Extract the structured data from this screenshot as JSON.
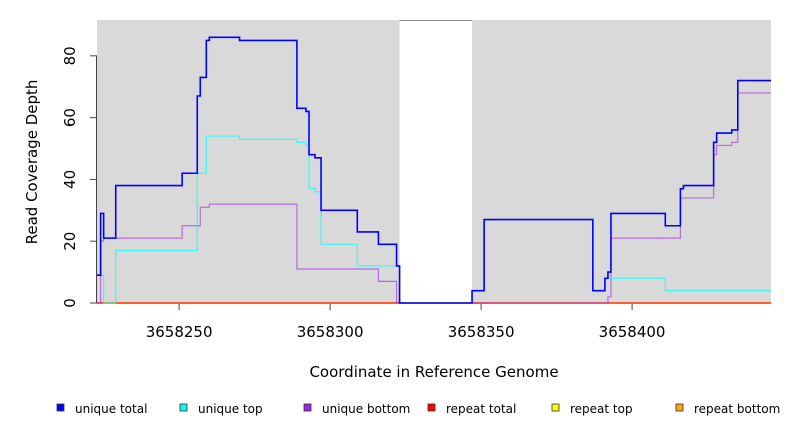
{
  "chart_data": {
    "type": "line",
    "step": true,
    "title": "",
    "xlabel": "Coordinate in Reference Genome",
    "ylabel": "Read Coverage Depth",
    "xlim": [
      3658222.8,
      3658446
    ],
    "ylim": [
      0,
      91.6
    ],
    "xticks": [
      3658250,
      3658300,
      3658350,
      3658400
    ],
    "xtick_labels": [
      "3658250",
      "3658300",
      "3658350",
      "3658400"
    ],
    "yticks": [
      0,
      20,
      40,
      60,
      80
    ],
    "ytick_labels": [
      "0",
      "20",
      "40",
      "60",
      "80"
    ],
    "background_color": "#d9d9d9",
    "no_data_region": [
      3658323,
      3658347
    ],
    "legend_position": "bottom",
    "series": [
      {
        "name": "unique total",
        "color": "#0000ff",
        "points": [
          [
            3658222.8,
            9
          ],
          [
            3658224,
            29
          ],
          [
            3658225,
            21
          ],
          [
            3658229,
            38
          ],
          [
            3658251,
            42
          ],
          [
            3658256,
            67
          ],
          [
            3658257,
            73
          ],
          [
            3658259,
            85
          ],
          [
            3658260,
            86
          ],
          [
            3658270,
            85
          ],
          [
            3658289,
            63
          ],
          [
            3658292,
            62
          ],
          [
            3658293,
            48
          ],
          [
            3658295,
            47
          ],
          [
            3658297,
            30
          ],
          [
            3658309,
            23
          ],
          [
            3658316,
            19
          ],
          [
            3658322,
            12
          ],
          [
            3658323,
            0
          ],
          [
            3658347,
            4
          ],
          [
            3658351,
            27
          ],
          [
            3658387,
            4
          ],
          [
            3658391,
            8
          ],
          [
            3658392,
            10
          ],
          [
            3658393,
            29
          ],
          [
            3658411,
            25
          ],
          [
            3658416,
            37
          ],
          [
            3658417,
            38
          ],
          [
            3658427,
            52
          ],
          [
            3658428,
            55
          ],
          [
            3658433,
            56
          ],
          [
            3658435,
            72
          ],
          [
            3658446,
            72
          ]
        ]
      },
      {
        "name": "unique top",
        "color": "#00ffff",
        "points": [
          [
            3658222.8,
            9
          ],
          [
            3658225,
            0
          ],
          [
            3658229,
            17
          ],
          [
            3658256,
            42
          ],
          [
            3658259,
            54
          ],
          [
            3658270,
            53
          ],
          [
            3658289,
            52
          ],
          [
            3658292,
            51
          ],
          [
            3658293,
            37
          ],
          [
            3658295,
            36
          ],
          [
            3658297,
            19
          ],
          [
            3658309,
            12
          ],
          [
            3658323,
            0
          ],
          [
            3658347,
            4
          ],
          [
            3658351,
            27
          ],
          [
            3658387,
            4
          ],
          [
            3658391,
            8
          ],
          [
            3658411,
            4
          ],
          [
            3658446,
            4
          ]
        ]
      },
      {
        "name": "unique bottom",
        "color": "#a020f0",
        "points": [
          [
            3658222.8,
            0
          ],
          [
            3658224,
            20
          ],
          [
            3658225,
            21
          ],
          [
            3658251,
            25
          ],
          [
            3658257,
            31
          ],
          [
            3658260,
            32
          ],
          [
            3658289,
            11
          ],
          [
            3658316,
            7
          ],
          [
            3658322,
            0
          ],
          [
            3658392,
            2
          ],
          [
            3658393,
            21
          ],
          [
            3658416,
            34
          ],
          [
            3658417,
            34
          ],
          [
            3658427,
            48
          ],
          [
            3658428,
            51
          ],
          [
            3658433,
            52
          ],
          [
            3658435,
            68
          ],
          [
            3658446,
            68
          ]
        ]
      },
      {
        "name": "repeat total",
        "color": "#ff0000",
        "points": [
          [
            3658222.8,
            0
          ],
          [
            3658446,
            0
          ]
        ]
      },
      {
        "name": "repeat top",
        "color": "#ffff00",
        "points": [
          [
            3658222.8,
            0
          ],
          [
            3658446,
            0
          ]
        ]
      },
      {
        "name": "repeat bottom",
        "color": "#ffa500",
        "points": [
          [
            3658222.8,
            0
          ],
          [
            3658446,
            0
          ]
        ]
      }
    ]
  }
}
